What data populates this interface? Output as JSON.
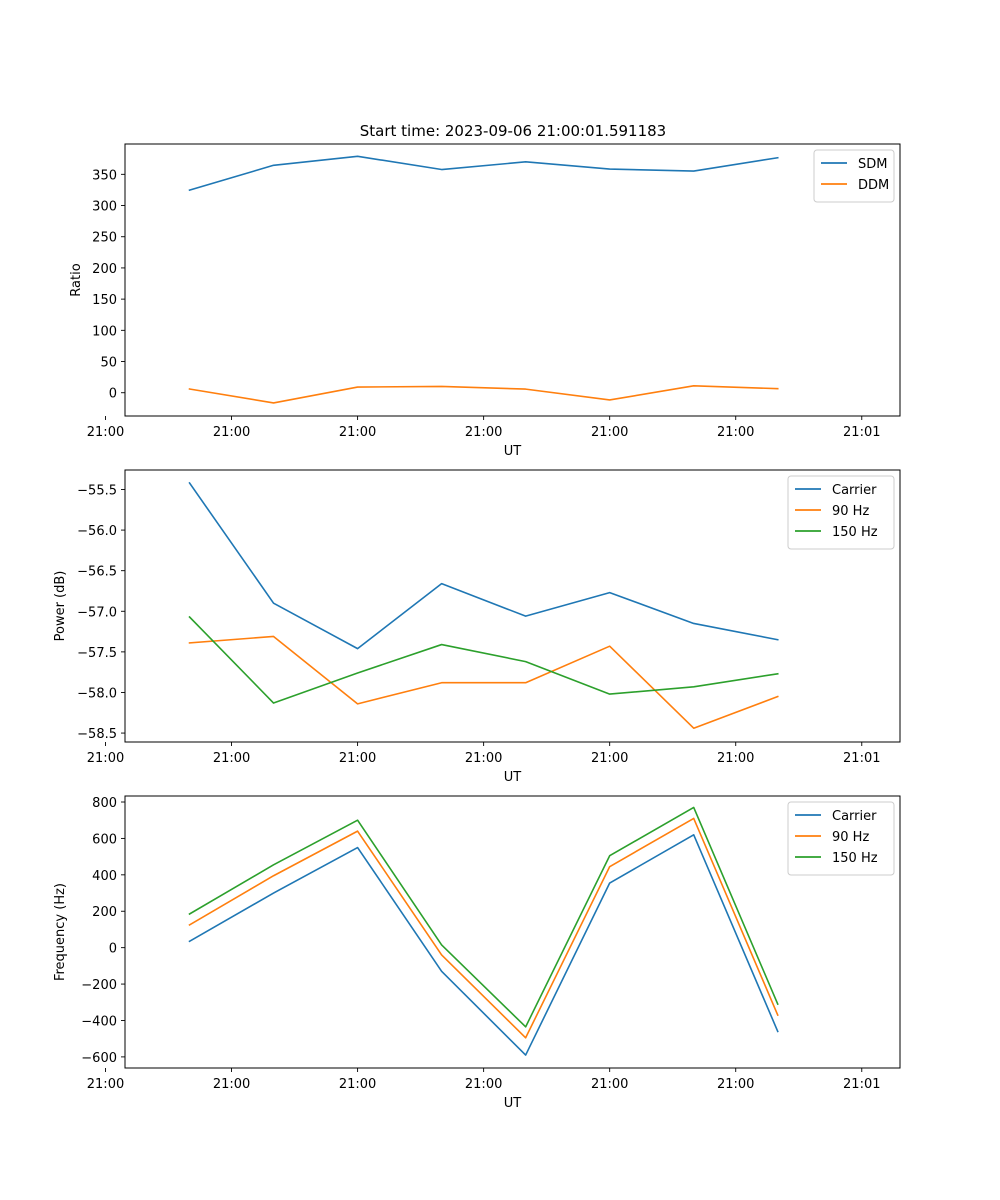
{
  "figure_title": "Start time: 2023-09-06 21:00:01.591183",
  "chart_data": [
    {
      "type": "line",
      "title": "Start time: 2023-09-06 21:00:01.591183",
      "xlabel": "UT",
      "ylabel": "Ratio",
      "x": [
        1,
        2,
        3,
        4,
        5,
        6,
        7,
        8
      ],
      "xlim": [
        0.232,
        9.455
      ],
      "xticks": [
        0,
        1.5,
        3,
        4.5,
        6,
        7.5,
        9
      ],
      "xtick_labels": [
        "21:00",
        "21:00",
        "21:00",
        "21:00",
        "21:00",
        "21:00",
        "21:01"
      ],
      "ylim": [
        -37.3,
        398.6
      ],
      "yticks": [
        0,
        50,
        100,
        150,
        200,
        250,
        300,
        350
      ],
      "ytick_labels": [
        "0",
        "50",
        "100",
        "150",
        "200",
        "250",
        "300",
        "350"
      ],
      "legend_position": "top-right",
      "grid": false,
      "series": [
        {
          "name": "SDM",
          "color": "#1f77b4",
          "values": [
            324.6,
            364.5,
            378.9,
            357.7,
            370,
            358.5,
            355.2,
            376.6
          ]
        },
        {
          "name": "DDM",
          "color": "#ff7f0e",
          "values": [
            6,
            -16.4,
            9.1,
            10.1,
            5.8,
            -11.6,
            11.1,
            6.5
          ]
        }
      ]
    },
    {
      "type": "line",
      "xlabel": "UT",
      "ylabel": "Power (dB)",
      "x": [
        1,
        2,
        3,
        4,
        5,
        6,
        7,
        8
      ],
      "xlim": [
        0.232,
        9.455
      ],
      "xticks": [
        0,
        1.5,
        3,
        4.5,
        6,
        7.5,
        9
      ],
      "xtick_labels": [
        "21:00",
        "21:00",
        "21:00",
        "21:00",
        "21:00",
        "21:00",
        "21:01"
      ],
      "ylim": [
        -58.61,
        -55.26
      ],
      "yticks": [
        -58.5,
        -58.0,
        -57.5,
        -57.0,
        -56.5,
        -56.0,
        -55.5
      ],
      "ytick_labels": [
        "−58.5",
        "−58.0",
        "−57.5",
        "−57.0",
        "−56.5",
        "−56.0",
        "−55.5"
      ],
      "legend_position": "top-right",
      "grid": false,
      "series": [
        {
          "name": "Carrier",
          "color": "#1f77b4",
          "values": [
            -55.42,
            -56.9,
            -57.46,
            -56.66,
            -57.06,
            -56.77,
            -57.15,
            -57.35
          ]
        },
        {
          "name": "90 Hz",
          "color": "#ff7f0e",
          "values": [
            -57.39,
            -57.31,
            -58.14,
            -57.88,
            -57.88,
            -57.43,
            -58.44,
            -58.05
          ]
        },
        {
          "name": "150 Hz",
          "color": "#2ca02c",
          "values": [
            -57.07,
            -58.13,
            -57.76,
            -57.41,
            -57.62,
            -58.02,
            -57.93,
            -57.77
          ]
        }
      ]
    },
    {
      "type": "line",
      "xlabel": "UT",
      "ylabel": "Frequency (Hz)",
      "x": [
        1,
        2,
        3,
        4,
        5,
        6,
        7,
        8
      ],
      "xlim": [
        0.232,
        9.455
      ],
      "xticks": [
        0,
        1.5,
        3,
        4.5,
        6,
        7.5,
        9
      ],
      "xtick_labels": [
        "21:00",
        "21:00",
        "21:00",
        "21:00",
        "21:00",
        "21:00",
        "21:01"
      ],
      "ylim": [
        -661,
        833
      ],
      "yticks": [
        -600,
        -400,
        -200,
        0,
        200,
        400,
        600,
        800
      ],
      "ytick_labels": [
        "−600",
        "−400",
        "−200",
        "0",
        "200",
        "400",
        "600",
        "800"
      ],
      "legend_position": "top-right",
      "grid": false,
      "series": [
        {
          "name": "Carrier",
          "color": "#1f77b4",
          "values": [
            35,
            300,
            550,
            -130,
            -590,
            355,
            620,
            -460
          ]
        },
        {
          "name": "90 Hz",
          "color": "#ff7f0e",
          "values": [
            125,
            395,
            640,
            -40,
            -495,
            445,
            710,
            -370
          ]
        },
        {
          "name": "150 Hz",
          "color": "#2ca02c",
          "values": [
            185,
            455,
            700,
            15,
            -435,
            505,
            770,
            -310
          ]
        }
      ]
    }
  ]
}
